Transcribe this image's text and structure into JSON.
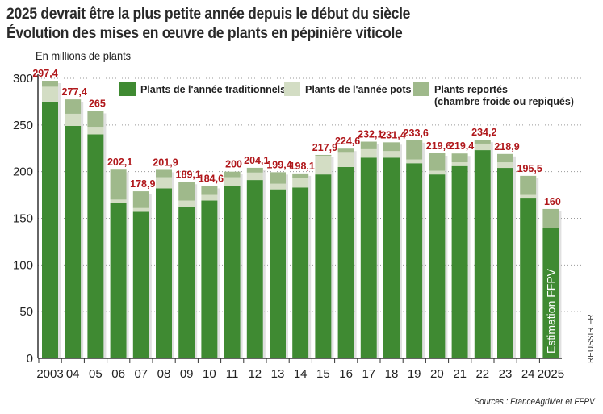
{
  "title": "2025 devrait être la plus petite année depuis le début du siècle",
  "subtitle": "Évolution des mises en œuvre de plants en pépinière viticole",
  "unit_label": "En millions de plants",
  "source": "Sources : FranceAgriMer et FFPV",
  "credit": "REUSSIR.FR",
  "chart_data": {
    "type": "bar",
    "stacked": true,
    "ylim": [
      0,
      300
    ],
    "yticks": [
      0,
      50,
      100,
      150,
      200,
      250,
      300
    ],
    "grid": true,
    "legend_position": "top",
    "categories": [
      "2003",
      "04",
      "05",
      "06",
      "07",
      "08",
      "09",
      "10",
      "11",
      "12",
      "13",
      "14",
      "15",
      "16",
      "17",
      "18",
      "19",
      "20",
      "21",
      "22",
      "23",
      "24",
      "2025"
    ],
    "totals_labels": [
      "297,4",
      "277,4",
      "265",
      "202,1",
      "178,9",
      "201,9",
      "189,1",
      "184,6",
      "200",
      "204,1",
      "199,4",
      "198,1",
      "217,9",
      "224,6",
      "232,1",
      "231,4",
      "233,6",
      "219,6",
      "219,4",
      "234,2",
      "218,9",
      "195,5",
      "160"
    ],
    "totals": [
      297.4,
      277.4,
      265,
      202.1,
      178.9,
      201.9,
      189.1,
      184.6,
      200,
      204.1,
      199.4,
      198.1,
      217.9,
      224.6,
      232.1,
      231.4,
      233.6,
      219.6,
      219.4,
      234.2,
      218.9,
      195.5,
      160
    ],
    "series": [
      {
        "name": "Plants de l'année traditionnels",
        "color": "#3f8a32",
        "values": [
          275,
          249,
          240,
          166,
          157,
          182,
          162,
          169,
          185,
          191,
          181,
          183,
          197,
          205,
          215,
          215,
          209,
          197,
          206,
          223,
          204,
          172,
          140
        ]
      },
      {
        "name": "Plants de l'année pots",
        "color": "#d3ddc4",
        "values": [
          16,
          13,
          8,
          4,
          4,
          12,
          7,
          6,
          9,
          8,
          6,
          10,
          20,
          16,
          9,
          7,
          4,
          4,
          4,
          7,
          6,
          3,
          0
        ]
      },
      {
        "name": "Plants reportés\n(chambre froide ou repiqués)",
        "name_lines": [
          "Plants reportés",
          "(chambre froide ou repiqués)"
        ],
        "color": "#9fb98b",
        "values": [
          6.4,
          15.4,
          17,
          32.1,
          17.9,
          7.9,
          20.1,
          9.6,
          6,
          5.1,
          12.4,
          5.1,
          0.9,
          3.6,
          8.1,
          9.4,
          20.6,
          18.6,
          9.4,
          4.2,
          8.9,
          20.5,
          20
        ]
      }
    ],
    "annotation": "Estimation FFPV"
  }
}
